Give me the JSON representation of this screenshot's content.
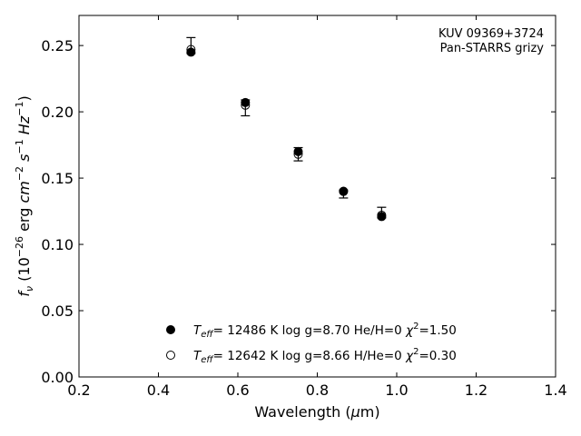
{
  "chart_data": {
    "type": "scatter",
    "xlabel": "Wavelength (μm)",
    "ylabel": "fν (10⁻²⁶ erg cm⁻² s⁻¹ Hz⁻¹)",
    "xlim": [
      0.2,
      1.4
    ],
    "ylim": [
      0.0,
      0.2727
    ],
    "xticks": [
      "0.2",
      "0.4",
      "0.6",
      "0.8",
      "1.0",
      "1.2",
      "1.4"
    ],
    "yticks": [
      "0.00",
      "0.05",
      "0.10",
      "0.15",
      "0.20",
      "0.25"
    ],
    "grid": false,
    "legend_position": "bottom-center",
    "annotations": [
      "KUV 09369+3724",
      "Pan-STARRS grizy"
    ],
    "observed": {
      "x": [
        0.482,
        0.619,
        0.752,
        0.866,
        0.962
      ],
      "y": [
        0.25,
        0.203,
        0.168,
        0.138,
        0.124
      ],
      "err": [
        0.006,
        0.006,
        0.005,
        0.003,
        0.004
      ]
    },
    "series": [
      {
        "name": "Teff= 12486 K  log g=8.70  He/H=0  χ²=1.50",
        "marker": "filled-circle",
        "x": [
          0.482,
          0.619,
          0.752,
          0.866,
          0.962
        ],
        "y": [
          0.245,
          0.207,
          0.17,
          0.14,
          0.121
        ]
      },
      {
        "name": "Teff= 12642 K  log g=8.66  H/He=0  χ²=0.30",
        "marker": "open-circle",
        "x": [
          0.482,
          0.619,
          0.752,
          0.866,
          0.962
        ],
        "y": [
          0.247,
          0.205,
          0.168,
          0.14,
          0.122
        ]
      }
    ]
  }
}
